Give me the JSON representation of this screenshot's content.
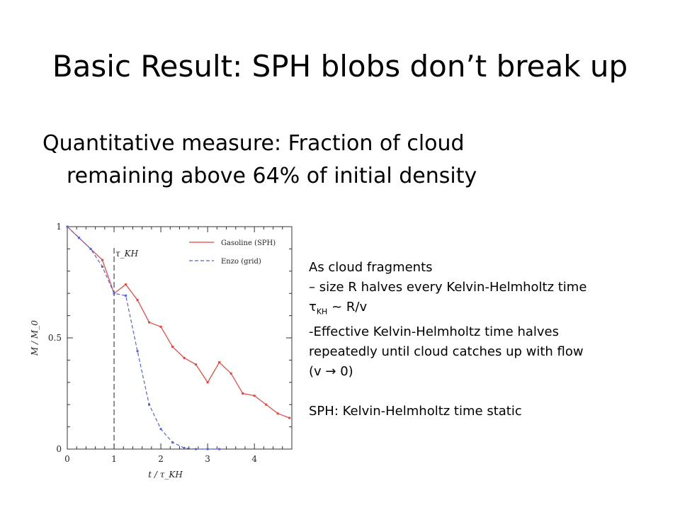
{
  "slide": {
    "title": "Basic Result: SPH blobs don’t break up",
    "subtitle_line1": "Quantitative measure:  Fraction of cloud",
    "subtitle_line2": "remaining above 64% of initial density"
  },
  "notes": {
    "line1": "As cloud fragments",
    "line2": "– size R halves every Kelvin-Helmholtz time",
    "line3_prefix": "τ",
    "line3_sub": "KH",
    "line3_suffix": " ~ R/v",
    "line4": "-Effective Kelvin-Helmholtz time halves",
    "line5": "repeatedly until cloud catches up with flow",
    "line6": "(v  →  0)",
    "line7": "SPH: Kelvin-Helmholtz time static"
  },
  "chart_data": {
    "type": "line",
    "xlabel": "t / τ_KH",
    "ylabel": "M / M_0",
    "xlim": [
      0,
      4.8
    ],
    "ylim": [
      0,
      1.0
    ],
    "xticks": [
      "0",
      "1",
      "2",
      "3",
      "4"
    ],
    "yticks": [
      "0",
      "0.5",
      "1"
    ],
    "annotation": "τ_KH",
    "annotation_x": 1,
    "legend_position": "top-right",
    "series": [
      {
        "name": "Gasoline (SPH)",
        "color": "#e8413b",
        "style": "solid",
        "x": [
          0,
          0.25,
          0.5,
          0.75,
          1.0,
          1.25,
          1.5,
          1.75,
          2.0,
          2.25,
          2.5,
          2.75,
          3.0,
          3.25,
          3.5,
          3.75,
          4.0,
          4.25,
          4.5,
          4.75
        ],
        "y": [
          1.0,
          0.95,
          0.9,
          0.85,
          0.7,
          0.74,
          0.67,
          0.57,
          0.55,
          0.46,
          0.41,
          0.38,
          0.3,
          0.39,
          0.34,
          0.25,
          0.24,
          0.2,
          0.16,
          0.14
        ]
      },
      {
        "name": "Enzo (grid)",
        "color": "#5a62d8",
        "style": "dashed",
        "x": [
          0,
          0.25,
          0.5,
          0.75,
          1.0,
          1.25,
          1.5,
          1.75,
          2.0,
          2.25,
          2.5,
          2.75,
          3.0,
          3.25
        ],
        "y": [
          1.0,
          0.95,
          0.9,
          0.82,
          0.7,
          0.69,
          0.44,
          0.2,
          0.09,
          0.03,
          0.005,
          0.0,
          0.0,
          0.0
        ]
      }
    ]
  }
}
